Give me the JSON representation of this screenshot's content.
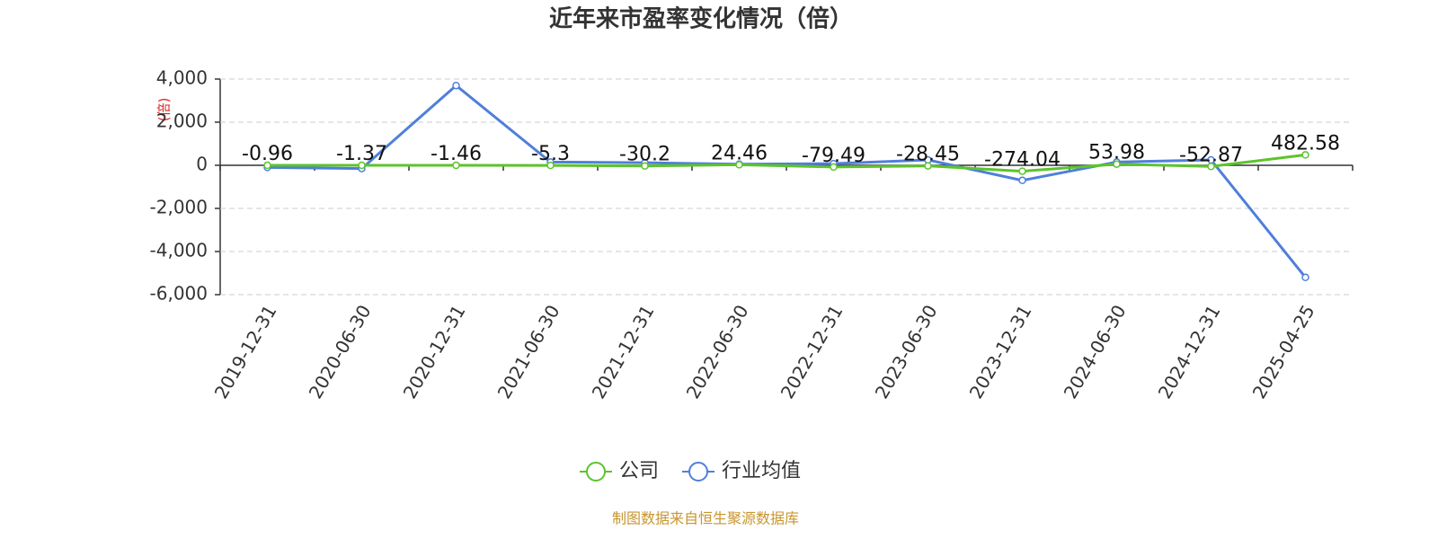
{
  "chart_data": {
    "type": "line",
    "title": "近年来市盈率变化情况（倍）",
    "y_label": "(倍)",
    "source": "制图数据来自恒生聚源数据库",
    "categories": [
      "2019-12-31",
      "2020-06-30",
      "2020-12-31",
      "2021-06-30",
      "2021-12-31",
      "2022-06-30",
      "2022-12-31",
      "2023-06-30",
      "2023-12-31",
      "2024-06-30",
      "2024-12-31",
      "2025-04-25"
    ],
    "series": [
      {
        "name": "公司",
        "color": "#5cc42b",
        "values": [
          -0.96,
          -1.37,
          -1.46,
          -5.3,
          -30.2,
          24.46,
          -79.49,
          -28.45,
          -274.04,
          53.98,
          -52.87,
          482.58
        ],
        "show_labels": true
      },
      {
        "name": "行业均值",
        "color": "#4f7fdb",
        "values": [
          -100,
          -150,
          3700,
          150,
          120,
          50,
          80,
          250,
          -700,
          150,
          250,
          -5200
        ],
        "show_labels": false
      }
    ],
    "ylim": [
      -6000,
      4000
    ],
    "yticks": [
      {
        "value": 4000,
        "label": "4,000"
      },
      {
        "value": 2000,
        "label": "2,000"
      },
      0,
      {
        "value": -2000,
        "label": "-2,000"
      },
      {
        "value": -4000,
        "label": "-4,000"
      },
      {
        "value": -6000,
        "label": "-6,000"
      }
    ],
    "grid": true,
    "legend": "bottom"
  }
}
